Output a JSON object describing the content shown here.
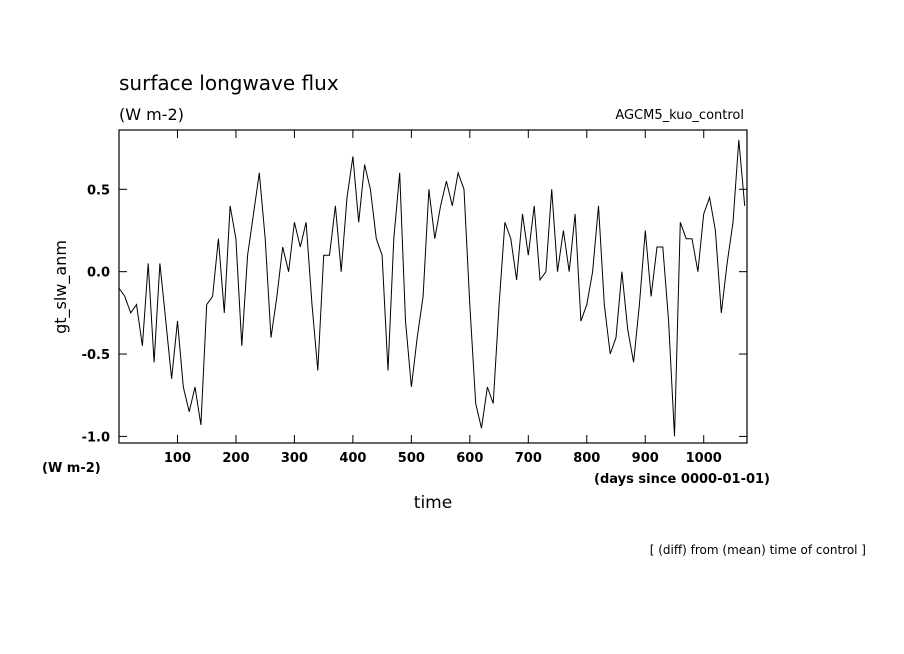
{
  "chart_data": {
    "type": "line",
    "title": "surface longwave flux",
    "subtitle": "(W m-2)",
    "annotation": "AGCM5_kuo_control",
    "ylabel": "gt_slw_anm",
    "yunits": "(W m-2)",
    "xlabel": "time",
    "xunits": "(days since 0000-01-01)",
    "footnote": "[ (diff) from (mean) time of control ]",
    "xlim": [
      0,
      1074
    ],
    "ylim": [
      -1.04,
      0.86
    ],
    "xticks": [
      100,
      200,
      300,
      400,
      500,
      600,
      700,
      800,
      900,
      1000
    ],
    "yticks": [
      0.5,
      {
        "value": 0,
        "label": "0.0"
      },
      -0.5,
      {
        "value": -1,
        "label": "-1.0"
      }
    ],
    "x": [
      0,
      10,
      20,
      30,
      40,
      50,
      60,
      70,
      80,
      90,
      100,
      110,
      120,
      130,
      140,
      150,
      160,
      170,
      180,
      190,
      200,
      210,
      220,
      230,
      240,
      250,
      260,
      270,
      280,
      290,
      300,
      310,
      320,
      330,
      340,
      350,
      360,
      370,
      380,
      390,
      400,
      410,
      420,
      430,
      440,
      450,
      460,
      470,
      480,
      490,
      500,
      510,
      520,
      530,
      540,
      550,
      560,
      570,
      580,
      590,
      600,
      610,
      620,
      630,
      640,
      650,
      660,
      670,
      680,
      690,
      700,
      710,
      720,
      730,
      740,
      750,
      760,
      770,
      780,
      790,
      800,
      810,
      820,
      830,
      840,
      850,
      860,
      870,
      880,
      890,
      900,
      910,
      920,
      930,
      940,
      950,
      960,
      970,
      980,
      990,
      1000,
      1010,
      1020,
      1030,
      1040,
      1050,
      1060,
      1070
    ],
    "series": [
      {
        "name": "gt_slw_anm",
        "color": "#000000",
        "values": [
          -0.1,
          -0.15,
          -0.25,
          -0.2,
          -0.45,
          0.05,
          -0.55,
          0.05,
          -0.3,
          -0.65,
          -0.3,
          -0.7,
          -0.85,
          -0.7,
          -0.93,
          -0.2,
          -0.15,
          0.2,
          -0.25,
          0.4,
          0.2,
          -0.45,
          0.1,
          0.35,
          0.6,
          0.2,
          -0.4,
          -0.15,
          0.15,
          0.0,
          0.3,
          0.15,
          0.3,
          -0.2,
          -0.6,
          0.1,
          0.1,
          0.4,
          0.0,
          0.45,
          0.7,
          0.3,
          0.65,
          0.5,
          0.2,
          0.1,
          -0.6,
          0.2,
          0.6,
          -0.3,
          -0.7,
          -0.4,
          -0.15,
          0.5,
          0.2,
          0.4,
          0.55,
          0.4,
          0.6,
          0.5,
          -0.2,
          -0.8,
          -0.95,
          -0.7,
          -0.8,
          -0.2,
          0.3,
          0.2,
          -0.05,
          0.35,
          0.1,
          0.4,
          -0.05,
          0.0,
          0.5,
          0.0,
          0.25,
          0.0,
          0.35,
          -0.3,
          -0.2,
          0.0,
          0.4,
          -0.2,
          -0.5,
          -0.4,
          0.0,
          -0.35,
          -0.55,
          -0.2,
          0.25,
          -0.15,
          0.15,
          0.15,
          -0.3,
          -1.0,
          0.3,
          0.2,
          0.2,
          0.0,
          0.35,
          0.45,
          0.25,
          -0.25,
          0.05,
          0.3,
          0.8,
          0.4
        ]
      }
    ]
  }
}
